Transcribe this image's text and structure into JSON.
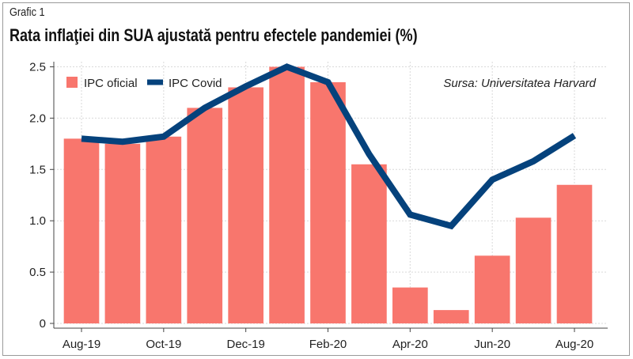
{
  "figure_label": "Grafic 1",
  "chart_data": {
    "type": "bar",
    "title": "Rata inflaţiei din SUA ajustată pentru efectele pandemiei (%)",
    "categories": [
      "Aug-19",
      "Sep-19",
      "Oct-19",
      "Nov-19",
      "Dec-19",
      "Jan-20",
      "Feb-20",
      "Mar-20",
      "Apr-20",
      "May-20",
      "Jun-20",
      "Jul-20",
      "Aug-20"
    ],
    "tick_labels": [
      "Aug-19",
      "",
      "Oct-19",
      "",
      "Dec-19",
      "",
      "Feb-20",
      "",
      "Apr-20",
      "",
      "Jun-20",
      "",
      "Aug-20"
    ],
    "series": [
      {
        "name": "IPC oficial",
        "type": "bar",
        "color": "#f8766d",
        "values": [
          1.8,
          1.75,
          1.82,
          2.1,
          2.3,
          2.5,
          2.35,
          1.55,
          0.35,
          0.13,
          0.66,
          1.03,
          1.35
        ]
      },
      {
        "name": "IPC Covid",
        "type": "line",
        "color": "#05427c",
        "values": [
          1.8,
          1.77,
          1.82,
          2.1,
          2.31,
          2.5,
          2.35,
          1.65,
          1.06,
          0.95,
          1.4,
          1.58,
          1.83
        ]
      }
    ],
    "yticks": [
      "0",
      "0.5",
      "1.0",
      "1.5",
      "2.0",
      "2.5"
    ],
    "ylim": [
      0,
      2.55
    ],
    "grid": true,
    "legend_position": "top-left",
    "source": "Sursa: Universitatea Harvard"
  }
}
